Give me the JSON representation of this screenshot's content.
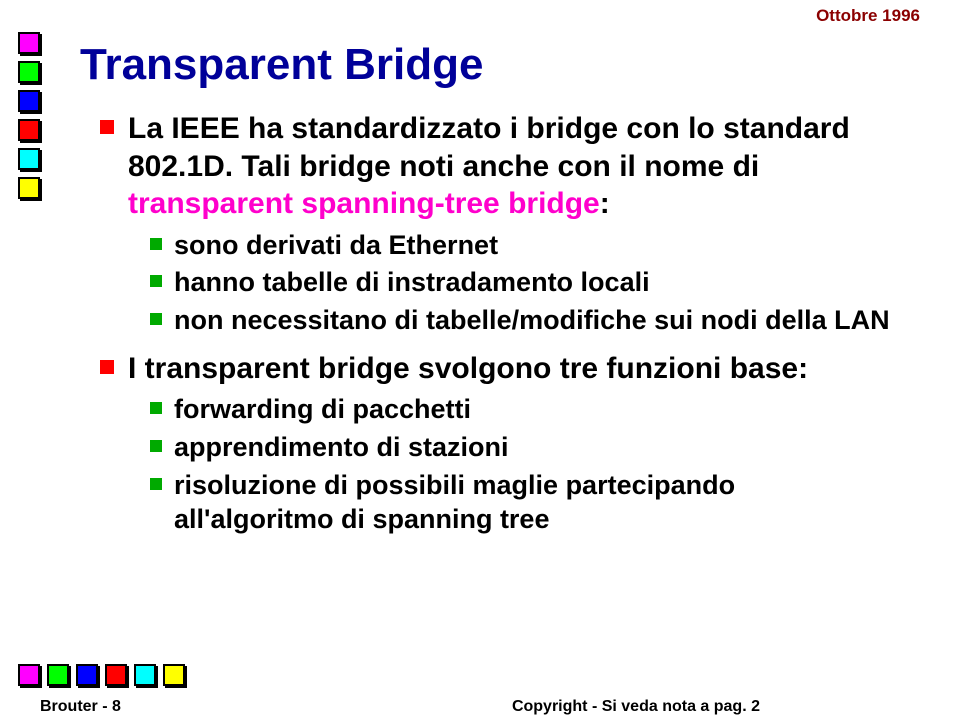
{
  "header": {
    "date": "Ottobre 1996"
  },
  "square_colors": [
    "#ff00ff",
    "#00ff00",
    "#0000ff",
    "#ff0000",
    "#00ffff",
    "#ffff00"
  ],
  "title": "Transparent Bridge",
  "bullet_color_l1": "#ff0000",
  "bullet_color_l2": "#00aa00",
  "items": {
    "l1a_pre": "La IEEE ha standardizzato i bridge con lo standard 802.1D. Tali bridge noti anche con il nome di ",
    "l1a_em": "transparent spanning-tree bridge",
    "l1a_post": ":",
    "l2a": "sono derivati da Ethernet",
    "l2b": "hanno tabelle di instradamento locali",
    "l2c": "non necessitano di tabelle/modifiche sui nodi della LAN",
    "l1b": "I transparent bridge svolgono tre funzioni base:",
    "l2d": "forwarding di pacchetti",
    "l2e": "apprendimento di stazioni",
    "l2f": "risoluzione di possibili maglie partecipando all'algoritmo di spanning tree"
  },
  "footer": {
    "left": "Brouter - 8",
    "right": "Copyright - Si veda nota a pag. 2"
  }
}
